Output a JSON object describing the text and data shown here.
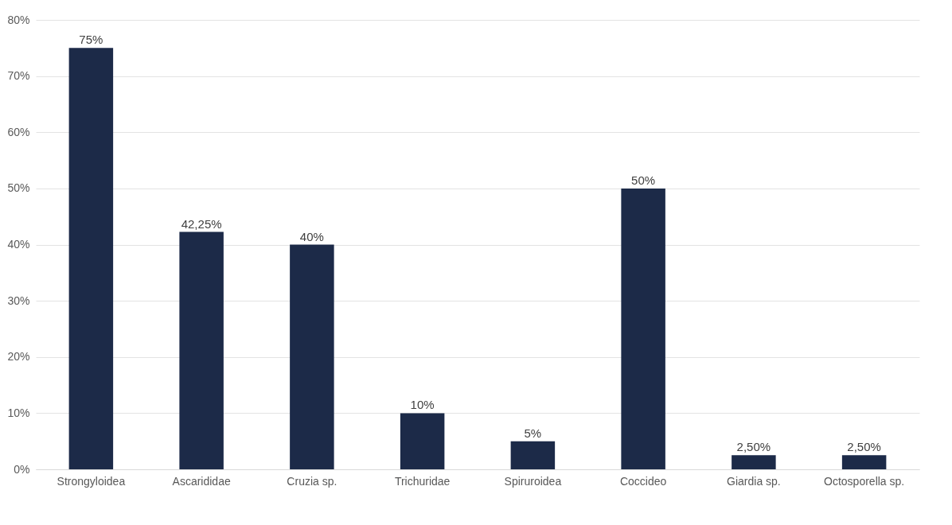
{
  "chart_data": {
    "type": "bar",
    "categories": [
      "Strongyloidea",
      "Ascarididae",
      "Cruzia sp.",
      "Trichuridae",
      "Spiruroidea",
      "Coccideo",
      "Giardia sp.",
      "Octosporella sp."
    ],
    "values": [
      75,
      42.25,
      40,
      10,
      5,
      50,
      2.5,
      2.5
    ],
    "value_labels": [
      "75%",
      "42,25%",
      "40%",
      "10%",
      "5%",
      "50%",
      "2,50%",
      "2,50%"
    ],
    "color": "#1c2a48",
    "ylim": [
      0,
      80
    ],
    "yticks": [
      {
        "value": 0,
        "label": "0%"
      },
      {
        "value": 10,
        "label": "10%"
      },
      {
        "value": 20,
        "label": "20%"
      },
      {
        "value": 30,
        "label": "30%"
      },
      {
        "value": 40,
        "label": "40%"
      },
      {
        "value": 50,
        "label": "50%"
      },
      {
        "value": 60,
        "label": "60%"
      },
      {
        "value": 70,
        "label": "70%"
      },
      {
        "value": 80,
        "label": "80%"
      }
    ],
    "grid": "y"
  }
}
